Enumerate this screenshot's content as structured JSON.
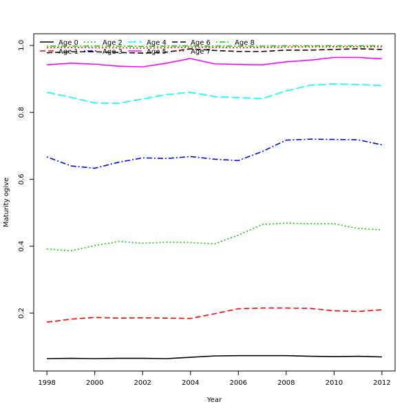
{
  "chart_data": {
    "type": "line",
    "title": "",
    "xlabel": "Year",
    "ylabel": "Maturity ogive",
    "xlim": [
      1997.45,
      2012.55
    ],
    "ylim": [
      0.027,
      1.035
    ],
    "x_ticks": [
      1998,
      2000,
      2002,
      2004,
      2006,
      2008,
      2010,
      2012
    ],
    "y_ticks": [
      0.2,
      0.4,
      0.6,
      0.8,
      1.0
    ],
    "y_tick_labels": [
      "0.2",
      "0.4",
      "0.6",
      "0.8",
      "1.0"
    ],
    "grid": false,
    "legend_position": "top-left",
    "x": [
      1998,
      1999,
      2000,
      2001,
      2002,
      2003,
      2004,
      2005,
      2006,
      2007,
      2008,
      2009,
      2010,
      2011,
      2012
    ],
    "series": [
      {
        "name": "Age 0",
        "color": "#000000",
        "dash": "solid",
        "values": [
          0.064,
          0.065,
          0.064,
          0.065,
          0.065,
          0.064,
          0.068,
          0.072,
          0.073,
          0.073,
          0.073,
          0.071,
          0.07,
          0.071,
          0.069
        ]
      },
      {
        "name": "Age 1",
        "color": "#ff0000",
        "dash": "dashed",
        "values": [
          0.173,
          0.182,
          0.187,
          0.185,
          0.186,
          0.185,
          0.184,
          0.198,
          0.213,
          0.215,
          0.215,
          0.214,
          0.207,
          0.205,
          0.21
        ]
      },
      {
        "name": "Age 2",
        "color": "#00cd00",
        "dash": "dotted",
        "values": [
          0.392,
          0.386,
          0.402,
          0.414,
          0.409,
          0.412,
          0.411,
          0.407,
          0.433,
          0.465,
          0.469,
          0.467,
          0.467,
          0.453,
          0.449
        ]
      },
      {
        "name": "Age 3",
        "color": "#0000ff",
        "dash": "dotdash",
        "values": [
          0.667,
          0.64,
          0.633,
          0.651,
          0.664,
          0.662,
          0.668,
          0.66,
          0.656,
          0.683,
          0.717,
          0.72,
          0.719,
          0.718,
          0.703
        ]
      },
      {
        "name": "Age 4",
        "color": "#00ffff",
        "dash": "longdash",
        "values": [
          0.86,
          0.845,
          0.828,
          0.827,
          0.84,
          0.853,
          0.86,
          0.847,
          0.844,
          0.841,
          0.864,
          0.881,
          0.885,
          0.883,
          0.88
        ]
      },
      {
        "name": "Age 5",
        "color": "#ff00ff",
        "dash": "solid",
        "values": [
          0.942,
          0.947,
          0.944,
          0.938,
          0.936,
          0.947,
          0.961,
          0.945,
          0.943,
          0.942,
          0.951,
          0.956,
          0.964,
          0.964,
          0.96
        ]
      },
      {
        "name": "Age 6",
        "color": "#000000",
        "dash": "dashed",
        "values": [
          0.978,
          0.981,
          0.981,
          0.979,
          0.977,
          0.98,
          0.99,
          0.985,
          0.982,
          0.982,
          0.986,
          0.986,
          0.988,
          0.99,
          0.988
        ]
      },
      {
        "name": "Age 7",
        "color": "#ff0000",
        "dash": "dotted",
        "values": [
          0.993,
          0.994,
          0.993,
          0.993,
          0.992,
          0.993,
          0.995,
          0.994,
          0.993,
          0.994,
          0.995,
          0.996,
          0.996,
          0.996,
          0.996
        ]
      },
      {
        "name": "Age 8",
        "color": "#00cd00",
        "dash": "dotdash",
        "values": [
          0.998,
          0.998,
          0.998,
          0.998,
          0.997,
          0.998,
          0.999,
          0.998,
          0.998,
          0.998,
          0.999,
          0.999,
          0.999,
          0.999,
          0.999
        ]
      }
    ]
  }
}
